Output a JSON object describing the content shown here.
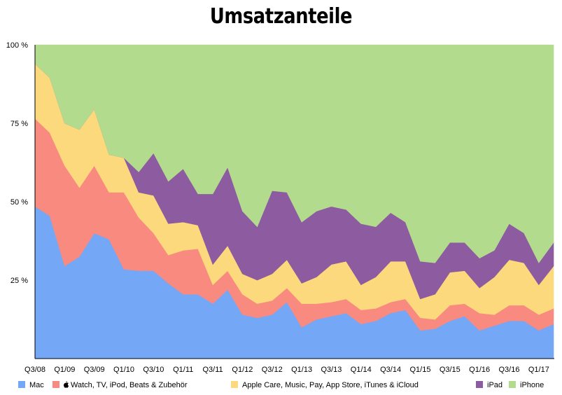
{
  "chart_data": {
    "type": "area",
    "stacked": true,
    "percent": true,
    "title": "Umsatzanteile",
    "ylim": [
      0,
      100
    ],
    "y_ticks": [
      {
        "value": 25,
        "label": "25 %"
      },
      {
        "value": 50,
        "label": "50 %"
      },
      {
        "value": 75,
        "label": "75 %"
      },
      {
        "value": 100,
        "label": "100 %"
      }
    ],
    "categories": [
      "Q3/08",
      "Q4/08",
      "Q1/09",
      "Q2/09",
      "Q3/09",
      "Q4/09",
      "Q1/10",
      "Q2/10",
      "Q3/10",
      "Q4/10",
      "Q1/11",
      "Q2/11",
      "Q3/11",
      "Q4/11",
      "Q1/12",
      "Q2/12",
      "Q3/12",
      "Q4/12",
      "Q1/13",
      "Q2/13",
      "Q3/13",
      "Q4/13",
      "Q1/14",
      "Q2/14",
      "Q3/14",
      "Q4/14",
      "Q1/15",
      "Q2/15",
      "Q3/15",
      "Q4/15",
      "Q1/16",
      "Q2/16",
      "Q3/16",
      "Q4/16",
      "Q1/17",
      "Q2/17"
    ],
    "x_tick_labels": [
      "Q3/08",
      "Q1/09",
      "Q3/09",
      "Q1/10",
      "Q3/10",
      "Q1/11",
      "Q3/11",
      "Q1/12",
      "Q3/12",
      "Q1/13",
      "Q3/13",
      "Q1/14",
      "Q3/14",
      "Q1/15",
      "Q3/15",
      "Q1/16",
      "Q3/16",
      "Q1/17"
    ],
    "series": [
      {
        "name": "Mac",
        "color": "#74a7f6",
        "values": [
          48.5,
          45.5,
          29.5,
          32.5,
          40,
          38,
          28.5,
          28,
          28,
          24,
          20.5,
          20.5,
          17.5,
          22,
          14,
          13,
          14,
          18,
          10,
          12.5,
          13.5,
          14.5,
          11,
          12,
          14.5,
          15.5,
          9,
          9.5,
          12,
          13.5,
          9,
          10.5,
          12,
          12,
          9,
          11
        ]
      },
      {
        "name": "Watch, TV, iPod, Beats & Zubehör",
        "color": "#f88a80",
        "values": [
          28,
          26.5,
          32,
          22,
          21.5,
          15,
          24.5,
          17,
          12,
          9,
          14,
          14.5,
          6,
          6,
          6.5,
          4.5,
          4.5,
          4.5,
          7.5,
          5,
          4.5,
          4.5,
          4.5,
          4,
          3.5,
          3.5,
          4,
          3,
          5,
          4,
          5.5,
          3.5,
          5,
          5,
          5,
          5
        ]
      },
      {
        "name": "Apple Care, Music, Pay, App Store, iTunes & iCloud",
        "color": "#fcd97c",
        "values": [
          17.5,
          17.5,
          13.5,
          18.5,
          18,
          12,
          11,
          8,
          12,
          10,
          9,
          7.5,
          6.5,
          8,
          6.5,
          7.5,
          8.5,
          9,
          6.5,
          8.5,
          12,
          12,
          8,
          10,
          13,
          12,
          6,
          8,
          10.5,
          10.5,
          8,
          12,
          14.5,
          13.5,
          9.5,
          13.5
        ]
      },
      {
        "name": "iPad",
        "color": "#8c5ba0",
        "values": [
          0,
          0,
          0,
          0,
          0,
          0,
          0,
          6.5,
          13.5,
          13.5,
          17,
          10,
          22.5,
          25,
          20,
          17,
          26.5,
          21.5,
          19.5,
          21,
          18.5,
          16.5,
          19.5,
          16,
          15.5,
          12.5,
          12,
          10,
          9.5,
          9,
          9.5,
          8.5,
          11.5,
          9.5,
          7,
          7.5
        ]
      },
      {
        "name": "iPhone",
        "color": "#b3db8d",
        "values": [
          6,
          10.5,
          25,
          27,
          20.5,
          35,
          36,
          40.5,
          34.5,
          43.5,
          39.5,
          47.5,
          47.5,
          39,
          53,
          58,
          46.5,
          47,
          56.5,
          53,
          51.5,
          52.5,
          57,
          58,
          53.5,
          56.5,
          69,
          69.5,
          63,
          63,
          68,
          65.5,
          57,
          60,
          69.5,
          63
        ]
      }
    ],
    "legend_position": "bottom"
  }
}
